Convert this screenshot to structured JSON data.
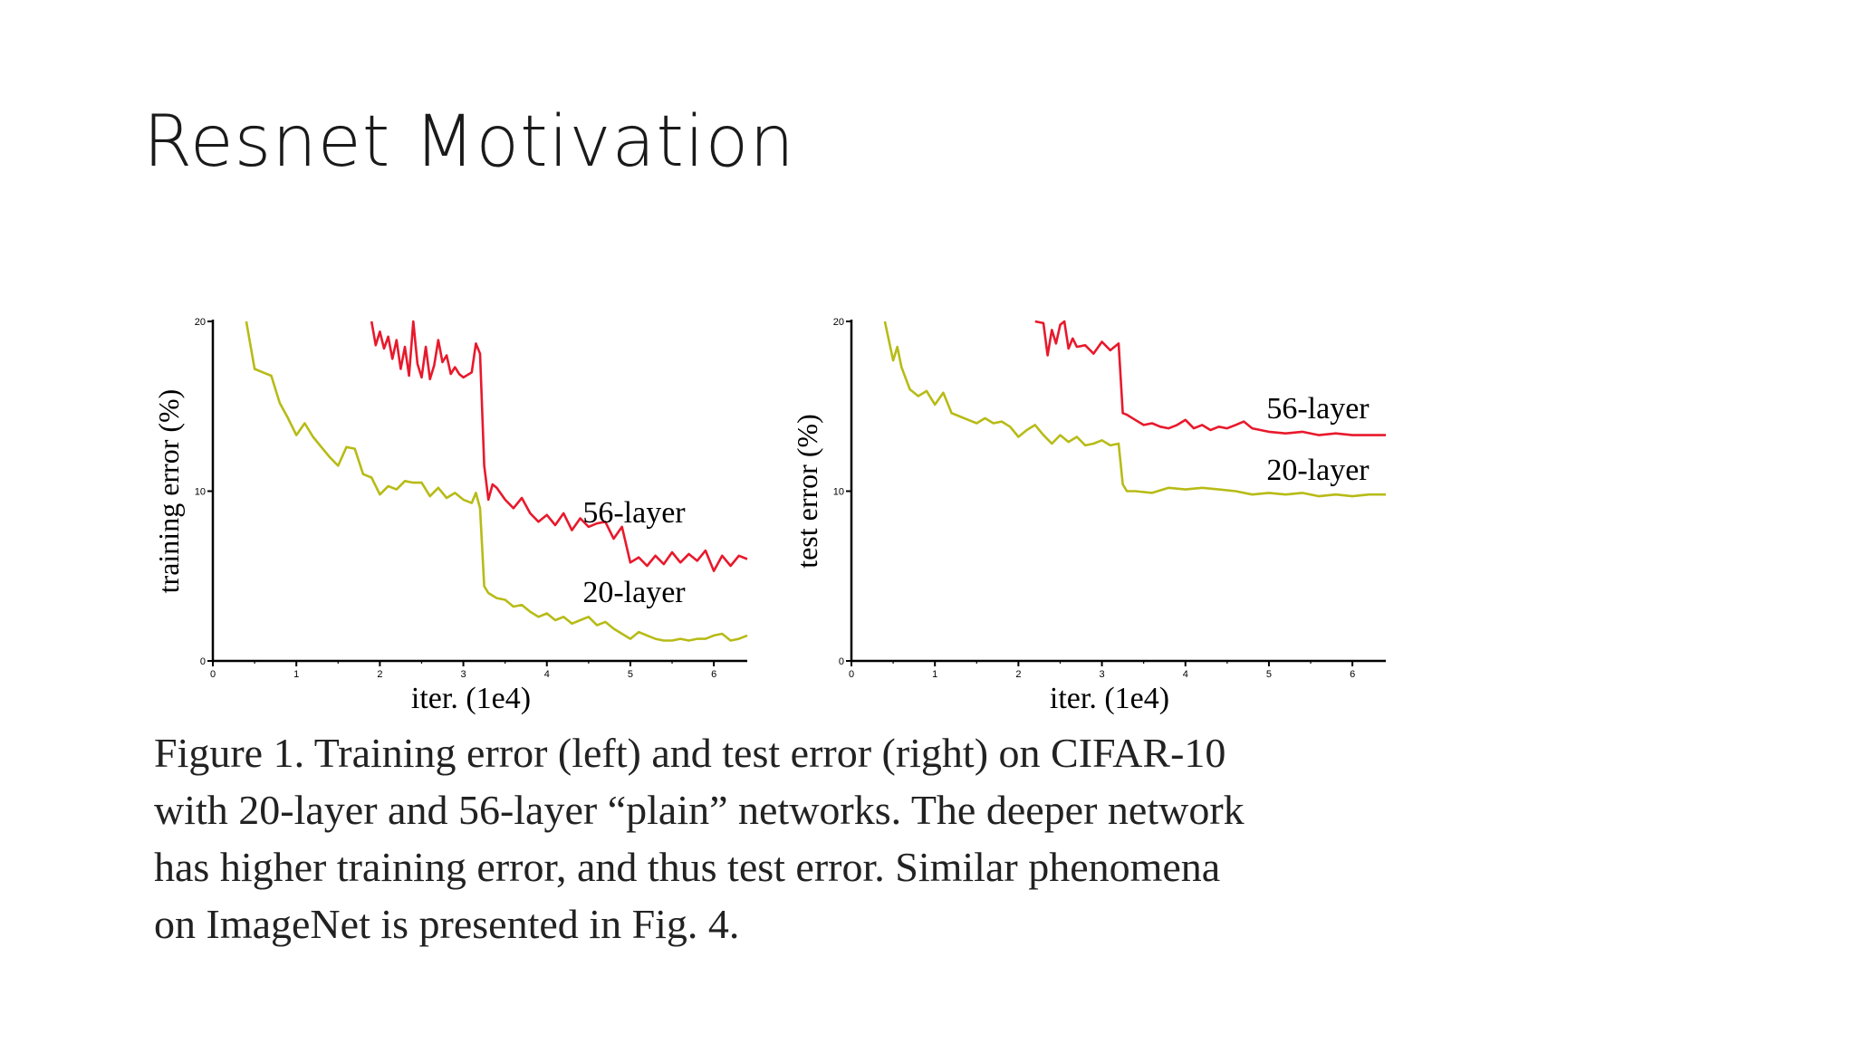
{
  "slide": {
    "title": "Resnet Motivation"
  },
  "colors": {
    "deep_series": "#e8192c",
    "shallow_series": "#b7bb16",
    "axis": "#000000"
  },
  "chart_data": [
    {
      "type": "line",
      "ylabel": "training error (%)",
      "xlabel": "iter. (1e4)",
      "xlim": [
        0,
        6.4
      ],
      "ylim": [
        0,
        20
      ],
      "xticks": [
        "0",
        "1",
        "2",
        "3",
        "4",
        "5",
        "6"
      ],
      "yticks": [
        "0",
        "10",
        "20"
      ],
      "grid": false,
      "series": [
        {
          "name": "56-layer",
          "x": [
            1.9,
            1.95,
            2.0,
            2.05,
            2.1,
            2.15,
            2.2,
            2.25,
            2.3,
            2.35,
            2.4,
            2.45,
            2.5,
            2.55,
            2.6,
            2.65,
            2.7,
            2.75,
            2.8,
            2.85,
            2.9,
            2.95,
            3.0,
            3.1,
            3.15,
            3.2,
            3.25,
            3.3,
            3.35,
            3.4,
            3.5,
            3.6,
            3.7,
            3.8,
            3.9,
            4.0,
            4.1,
            4.2,
            4.3,
            4.4,
            4.5,
            4.6,
            4.7,
            4.8,
            4.9,
            5.0,
            5.1,
            5.2,
            5.3,
            5.4,
            5.5,
            5.6,
            5.7,
            5.8,
            5.9,
            6.0,
            6.1,
            6.2,
            6.3,
            6.4
          ],
          "values": [
            20,
            18.6,
            19.4,
            18.4,
            19.1,
            17.8,
            18.9,
            17.2,
            18.5,
            16.8,
            20.0,
            17.5,
            16.7,
            18.5,
            16.6,
            17.4,
            18.9,
            17.6,
            18.0,
            16.9,
            17.3,
            16.9,
            16.7,
            17.0,
            18.7,
            18.1,
            11.5,
            9.5,
            10.4,
            10.2,
            9.5,
            9.0,
            9.6,
            8.7,
            8.2,
            8.6,
            8.0,
            8.7,
            7.7,
            8.4,
            7.9,
            8.1,
            8.2,
            7.2,
            7.9,
            5.8,
            6.1,
            5.6,
            6.2,
            5.7,
            6.4,
            5.8,
            6.3,
            5.9,
            6.5,
            5.3,
            6.2,
            5.6,
            6.2,
            6.0
          ]
        },
        {
          "name": "20-layer",
          "x": [
            0.4,
            0.5,
            0.6,
            0.7,
            0.8,
            0.9,
            1.0,
            1.1,
            1.2,
            1.3,
            1.4,
            1.5,
            1.6,
            1.7,
            1.8,
            1.9,
            2.0,
            2.1,
            2.2,
            2.3,
            2.4,
            2.5,
            2.6,
            2.7,
            2.8,
            2.9,
            3.0,
            3.1,
            3.15,
            3.2,
            3.25,
            3.3,
            3.4,
            3.5,
            3.6,
            3.7,
            3.8,
            3.9,
            4.0,
            4.1,
            4.2,
            4.3,
            4.4,
            4.5,
            4.6,
            4.7,
            4.8,
            4.9,
            5.0,
            5.1,
            5.2,
            5.3,
            5.4,
            5.5,
            5.6,
            5.7,
            5.8,
            5.9,
            6.0,
            6.1,
            6.2,
            6.3,
            6.4
          ],
          "values": [
            20,
            17.2,
            17.0,
            16.8,
            15.2,
            14.3,
            13.3,
            14.0,
            13.2,
            12.6,
            12.0,
            11.5,
            12.6,
            12.5,
            11.0,
            10.8,
            9.8,
            10.3,
            10.1,
            10.6,
            10.5,
            10.5,
            9.7,
            10.2,
            9.6,
            9.9,
            9.5,
            9.3,
            9.9,
            9.0,
            4.4,
            4.0,
            3.7,
            3.6,
            3.2,
            3.3,
            2.9,
            2.6,
            2.8,
            2.4,
            2.6,
            2.2,
            2.4,
            2.6,
            2.1,
            2.3,
            1.9,
            1.6,
            1.3,
            1.7,
            1.5,
            1.3,
            1.2,
            1.2,
            1.3,
            1.2,
            1.3,
            1.3,
            1.5,
            1.6,
            1.2,
            1.3,
            1.5
          ]
        }
      ]
    },
    {
      "type": "line",
      "ylabel": "test error (%)",
      "xlabel": "iter. (1e4)",
      "xlim": [
        0,
        6.4
      ],
      "ylim": [
        0,
        20
      ],
      "xticks": [
        "0",
        "1",
        "2",
        "3",
        "4",
        "5",
        "6"
      ],
      "yticks": [
        "0",
        "10",
        "20"
      ],
      "grid": false,
      "series": [
        {
          "name": "56-layer",
          "x": [
            2.2,
            2.3,
            2.35,
            2.4,
            2.45,
            2.5,
            2.55,
            2.6,
            2.65,
            2.7,
            2.8,
            2.9,
            3.0,
            3.1,
            3.2,
            3.25,
            3.3,
            3.4,
            3.5,
            3.6,
            3.7,
            3.8,
            3.9,
            4.0,
            4.1,
            4.2,
            4.3,
            4.4,
            4.5,
            4.6,
            4.7,
            4.8,
            4.9,
            5.0,
            5.2,
            5.4,
            5.6,
            5.8,
            6.0,
            6.2,
            6.4
          ],
          "values": [
            20,
            19.9,
            18.0,
            19.5,
            18.7,
            19.8,
            20.0,
            18.4,
            19.0,
            18.5,
            18.6,
            18.1,
            18.8,
            18.3,
            18.7,
            14.6,
            14.5,
            14.2,
            13.9,
            14.0,
            13.8,
            13.7,
            13.9,
            14.2,
            13.7,
            13.9,
            13.6,
            13.8,
            13.7,
            13.9,
            14.1,
            13.7,
            13.6,
            13.5,
            13.4,
            13.5,
            13.3,
            13.4,
            13.3,
            13.3,
            13.3
          ]
        },
        {
          "name": "20-layer",
          "x": [
            0.4,
            0.5,
            0.55,
            0.6,
            0.7,
            0.8,
            0.9,
            1.0,
            1.1,
            1.2,
            1.3,
            1.4,
            1.5,
            1.6,
            1.7,
            1.8,
            1.9,
            2.0,
            2.1,
            2.2,
            2.3,
            2.4,
            2.5,
            2.6,
            2.7,
            2.8,
            2.9,
            3.0,
            3.1,
            3.2,
            3.25,
            3.3,
            3.4,
            3.6,
            3.8,
            4.0,
            4.2,
            4.4,
            4.6,
            4.8,
            5.0,
            5.2,
            5.4,
            5.6,
            5.8,
            6.0,
            6.2,
            6.4
          ],
          "values": [
            20,
            17.7,
            18.5,
            17.3,
            16.0,
            15.6,
            15.9,
            15.1,
            15.8,
            14.6,
            14.4,
            14.2,
            14.0,
            14.3,
            14.0,
            14.1,
            13.8,
            13.2,
            13.6,
            13.9,
            13.3,
            12.8,
            13.3,
            12.9,
            13.2,
            12.7,
            12.8,
            13.0,
            12.7,
            12.8,
            10.4,
            10.0,
            10.0,
            9.9,
            10.2,
            10.1,
            10.2,
            10.1,
            10.0,
            9.8,
            9.9,
            9.8,
            9.9,
            9.7,
            9.8,
            9.7,
            9.8,
            9.8
          ]
        }
      ]
    }
  ],
  "figure": {
    "caption": "Figure 1. Training error (left) and test error (right) on CIFAR-10\nwith 20-layer and 56-layer “plain” networks. The deeper network\nhas higher training error, and thus test error.  Similar phenomena\non ImageNet is presented in Fig. 4."
  }
}
